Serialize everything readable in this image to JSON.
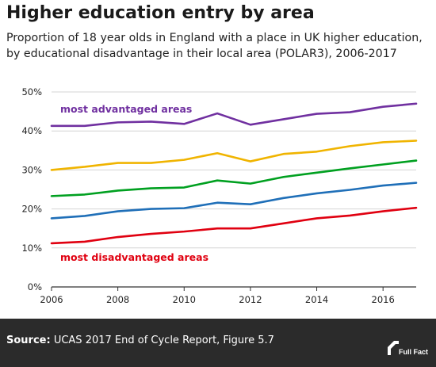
{
  "header": {
    "title": "Higher education entry by area",
    "subtitle": "Proportion of 18 year olds in England with a place in UK higher education, by educational disadvantage in their local area (POLAR3), 2006-2017"
  },
  "footer": {
    "source_prefix": "Source:",
    "source_text": " UCAS 2017 End of Cycle Report, Figure 5.7",
    "logo_text": "Full Fact",
    "logo_icon": "full-fact-logo-icon"
  },
  "chart_data": {
    "type": "line",
    "x": [
      2006,
      2007,
      2008,
      2009,
      2010,
      2011,
      2012,
      2013,
      2014,
      2015,
      2016,
      2017
    ],
    "xlim": [
      2006,
      2017
    ],
    "xticks": [
      2006,
      2008,
      2010,
      2012,
      2014,
      2016
    ],
    "xtick_labels": [
      "2006",
      "2008",
      "2010",
      "2012",
      "2014",
      "2016"
    ],
    "ylim": [
      0,
      50
    ],
    "yticks": [
      0,
      10,
      20,
      30,
      40,
      50
    ],
    "ytick_labels": [
      "0%",
      "10%",
      "20%",
      "30%",
      "40%",
      "50%"
    ],
    "grid": "horizontal",
    "series": [
      {
        "name": "most advantaged areas",
        "color": "#7030a0",
        "values": [
          41.3,
          41.3,
          42.2,
          42.4,
          41.8,
          44.5,
          41.6,
          43.0,
          44.4,
          44.8,
          46.2,
          47.0
        ]
      },
      {
        "name": "",
        "color": "#f0b400",
        "values": [
          30.0,
          30.8,
          31.8,
          31.8,
          32.6,
          34.3,
          32.2,
          34.1,
          34.7,
          36.1,
          37.1,
          37.5
        ]
      },
      {
        "name": "",
        "color": "#00a020",
        "values": [
          23.3,
          23.7,
          24.7,
          25.3,
          25.5,
          27.3,
          26.5,
          28.2,
          29.3,
          30.4,
          31.4,
          32.4
        ]
      },
      {
        "name": "",
        "color": "#1f6fb8",
        "values": [
          17.6,
          18.2,
          19.4,
          20.0,
          20.2,
          21.6,
          21.2,
          22.8,
          24.0,
          24.9,
          26.0,
          26.7
        ]
      },
      {
        "name": "most disadvantaged areas",
        "color": "#e00010",
        "values": [
          11.2,
          11.6,
          12.8,
          13.6,
          14.2,
          15.0,
          15.0,
          16.3,
          17.6,
          18.3,
          19.4,
          20.3
        ]
      }
    ]
  }
}
